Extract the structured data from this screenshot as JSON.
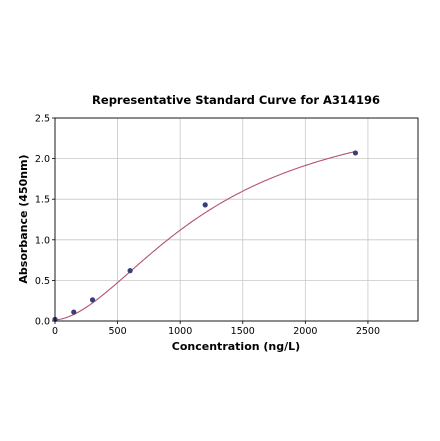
{
  "chart_data": {
    "type": "scatter",
    "title": "Representative Standard Curve for A314196",
    "xlabel": "Concentration (ng/L)",
    "ylabel": "Absorbance (450nm)",
    "xlim": [
      0,
      2900
    ],
    "ylim": [
      0,
      2.5
    ],
    "xticks": [
      "0",
      "500",
      "1000",
      "1500",
      "2000",
      "2500"
    ],
    "yticks": [
      "0.0",
      "0.5",
      "1.0",
      "1.5",
      "2.0",
      "2.5"
    ],
    "grid": true,
    "series": [
      {
        "type": "scatter",
        "x": [
          0,
          150,
          300,
          600,
          1200,
          2400
        ],
        "y": [
          0.02,
          0.11,
          0.26,
          0.62,
          1.43,
          2.07
        ]
      },
      {
        "type": "line",
        "fit": "four-parameter logistic",
        "params": {
          "a": 0.015,
          "b": 1.75,
          "c": 1250,
          "d": 2.75
        }
      }
    ],
    "colors": {
      "curve": "#b5526e",
      "points": "#3b3d7a",
      "grid": "#c8c8c8"
    }
  }
}
